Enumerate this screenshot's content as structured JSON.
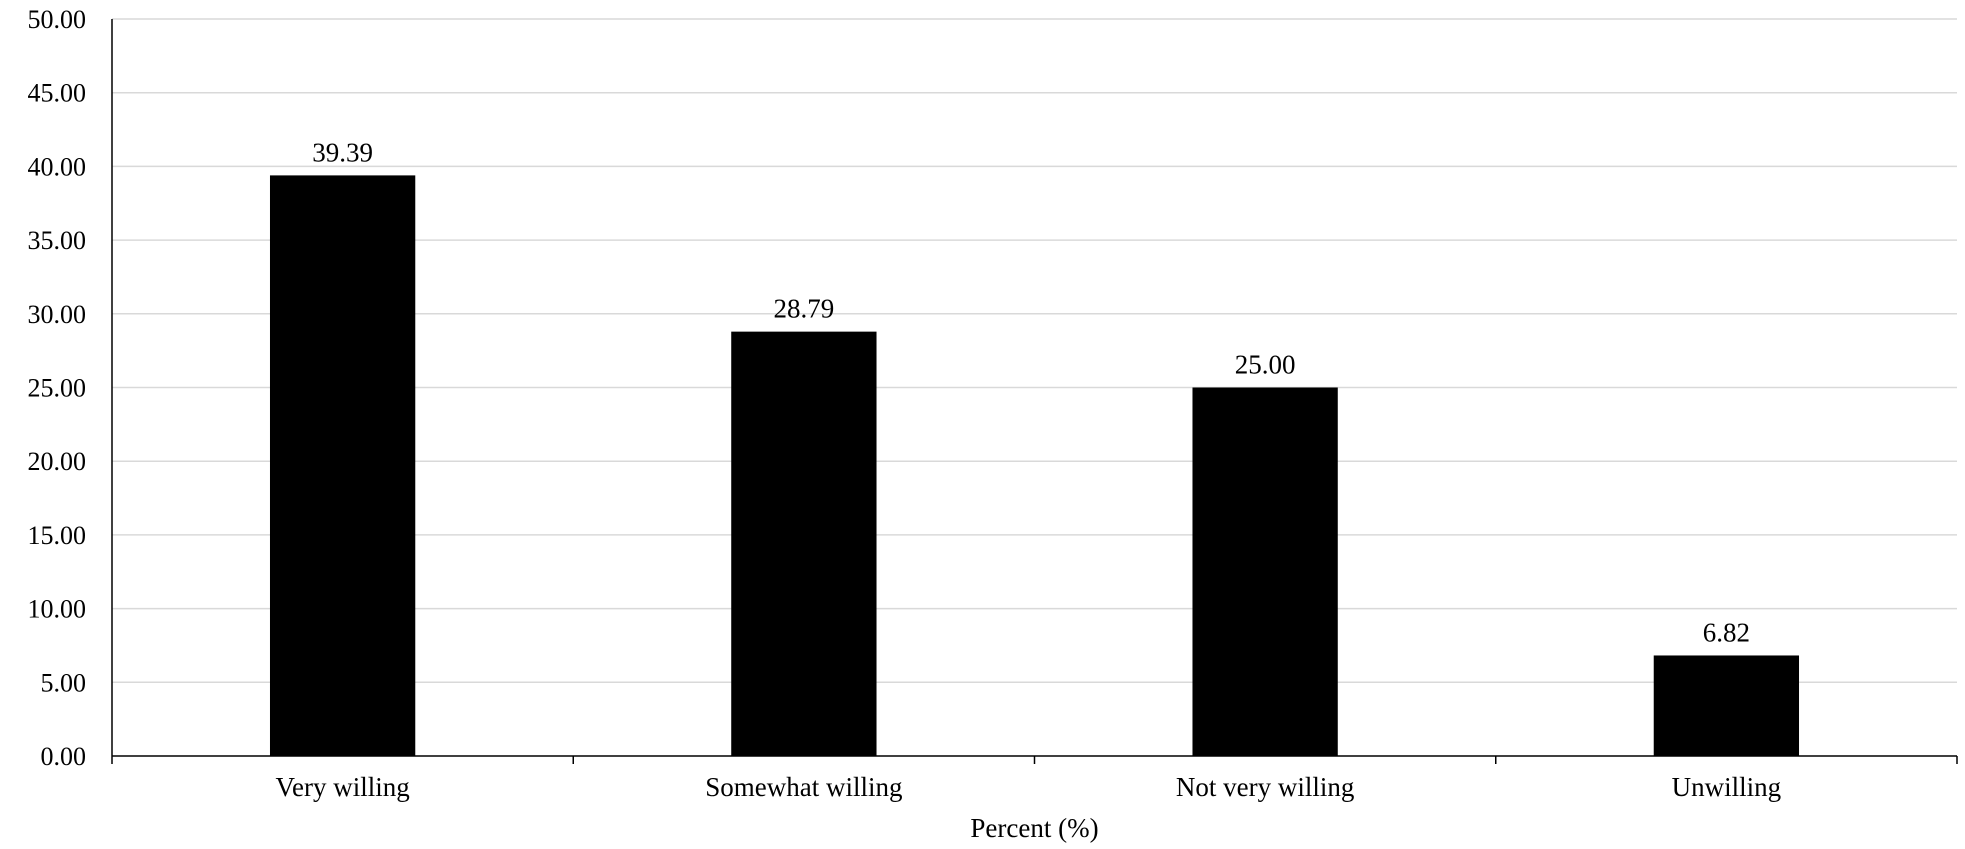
{
  "chart_data": {
    "type": "bar",
    "categories": [
      "Very willing",
      "Somewhat willing",
      "Not very willing",
      "Unwilling"
    ],
    "values": [
      39.39,
      28.79,
      25.0,
      6.82
    ],
    "data_labels": [
      "39.39",
      "28.79",
      "25.00",
      "6.82"
    ],
    "title": "",
    "xlabel": "Percent (%)",
    "ylabel": "",
    "ylim": [
      0,
      50
    ],
    "yticks": [
      0,
      5,
      10,
      15,
      20,
      25,
      30,
      35,
      40,
      45,
      50
    ],
    "ytick_labels": [
      "0.00",
      "5.00",
      "10.00",
      "15.00",
      "20.00",
      "25.00",
      "30.00",
      "35.00",
      "40.00",
      "45.00",
      "50.00"
    ],
    "grid": true,
    "legend": "none",
    "bar_color": "#000000",
    "grid_color": "#d9d9d9"
  }
}
